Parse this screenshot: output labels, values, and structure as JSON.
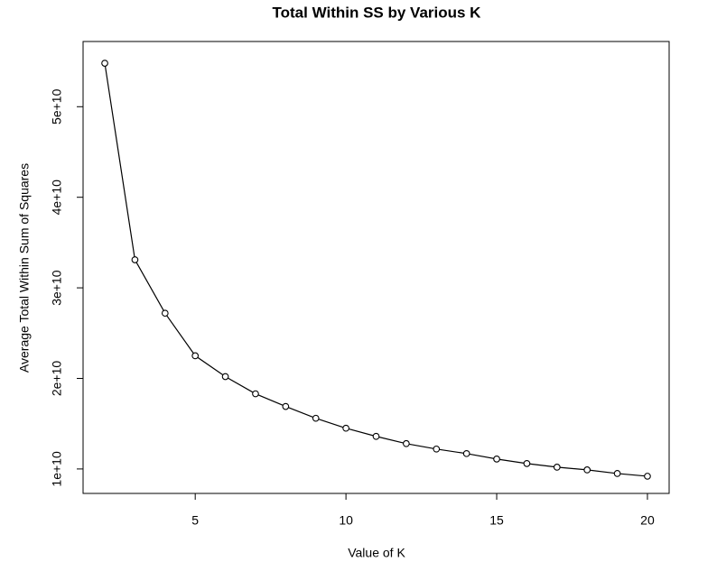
{
  "chart_data": {
    "type": "line",
    "title": "Total Within SS by Various K",
    "xlabel": "Value of K",
    "ylabel": "Average Total Within Sum of Squares",
    "x": [
      2,
      3,
      4,
      5,
      6,
      7,
      8,
      9,
      10,
      11,
      12,
      13,
      14,
      15,
      16,
      17,
      18,
      19,
      20
    ],
    "series": [
      {
        "color": "#000000",
        "values": [
          54800000000,
          33100000000,
          27200000000,
          22500000000,
          20200000000,
          18300000000,
          16900000000,
          15600000000,
          14500000000,
          13600000000,
          12800000000,
          12200000000,
          11700000000,
          11100000000,
          10600000000,
          10200000000,
          9900000000,
          9500000000,
          9200000000
        ]
      }
    ],
    "xlim": [
      1.28,
      20.72
    ],
    "ylim": [
      7300000000,
      57200000000
    ],
    "xticks": [
      5,
      10,
      15,
      20
    ],
    "yticks": [
      {
        "value": 10000000000,
        "label": "1e+10"
      },
      {
        "value": 20000000000,
        "label": "2e+10"
      },
      {
        "value": 30000000000,
        "label": "3e+10"
      },
      {
        "value": 40000000000,
        "label": "4e+10"
      },
      {
        "value": 50000000000,
        "label": "5e+10"
      }
    ]
  }
}
